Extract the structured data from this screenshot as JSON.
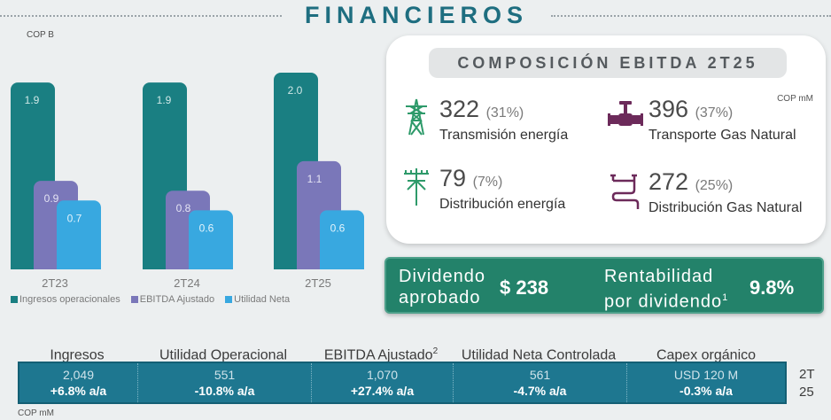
{
  "header": {
    "title": "FINANCIEROS"
  },
  "chart_unit": "COP B",
  "chart_data": {
    "type": "bar",
    "categories": [
      "2T23",
      "2T24",
      "2T25"
    ],
    "series": [
      {
        "name": "Ingresos operacionales",
        "values": [
          1.9,
          1.9,
          2.0
        ],
        "color": "#1a7f82"
      },
      {
        "name": "EBITDA Ajustado",
        "values": [
          0.9,
          0.8,
          1.1
        ],
        "color": "#7a77b9"
      },
      {
        "name": "Utilidad Neta",
        "values": [
          0.7,
          0.6,
          0.6
        ],
        "color": "#38a8e0"
      }
    ],
    "value_labels": [
      [
        "1.9",
        "0.9",
        "0.7"
      ],
      [
        "1.9",
        "0.8",
        "0.6"
      ],
      [
        "2.0",
        "1.1",
        "0.6"
      ]
    ],
    "ylim": [
      0,
      2.0
    ],
    "legend_position": "bottom"
  },
  "ebitda": {
    "title": "COMPOSICIÓN EBITDA 2T25",
    "unit": "COP mM",
    "segments": [
      {
        "value": "322",
        "pct": "(31%)",
        "label": "Transmisión energía",
        "icon": "transmission-tower-icon"
      },
      {
        "value": "396",
        "pct": "(37%)",
        "label": "Transporte Gas Natural",
        "icon": "gas-valve-icon"
      },
      {
        "value": "79",
        "pct": "(7%)",
        "label": "Distribución energía",
        "icon": "utility-pole-icon"
      },
      {
        "value": "272",
        "pct": "(25%)",
        "label": "Distribución Gas Natural",
        "icon": "gas-pipeline-icon"
      }
    ]
  },
  "dividend": {
    "label_line1": "Dividendo",
    "label_line2": "aprobado",
    "value": "$ 238",
    "yield_line1": "Rentabilidad",
    "yield_line2": "por dividendo",
    "yield_sup": "1",
    "yield_value": "9.8%"
  },
  "kpis": {
    "headers": [
      {
        "label": "Ingresos",
        "sup": ""
      },
      {
        "label": "Utilidad Operacional",
        "sup": ""
      },
      {
        "label": "EBITDA Ajustado",
        "sup": "2"
      },
      {
        "label": "Utilidad Neta Controlada",
        "sup": ""
      },
      {
        "label": "Capex orgánico",
        "sup": ""
      }
    ],
    "values": [
      "2,049",
      "551",
      "1,070",
      "561",
      "USD 120 M"
    ],
    "changes": [
      "+6.8% a/a",
      "-10.8% a/a",
      "+27.4% a/a",
      "-4.7% a/a",
      "-0.3% a/a"
    ],
    "period_line1": "2T",
    "period_line2": "25",
    "unit": "COP mM"
  },
  "colors": {
    "accent": "#1e6e80",
    "green": "#23826a",
    "table": "#1e7790"
  }
}
